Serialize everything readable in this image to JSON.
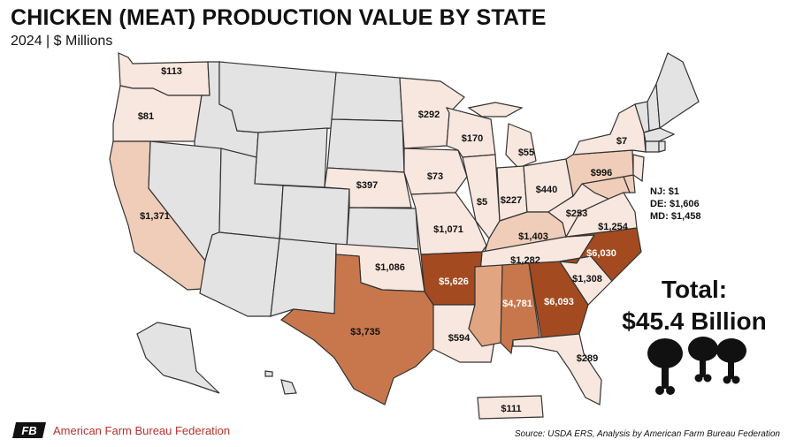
{
  "title": "CHICKEN (MEAT) PRODUCTION VALUE BY STATE",
  "subtitle": "2024 | $ Millions",
  "total_label": "Total:",
  "total_value": "$45.4 Billion",
  "notes": [
    "NJ: $1",
    "DE: $1,606",
    "MD: $1,458"
  ],
  "source": "Source: USDA ERS, Analysis by American Farm Bureau Federation",
  "org": "American Farm Bureau Federation",
  "org_mark": "FB",
  "colors": {
    "none": "#e3e3e3",
    "lightest": "#f8e7de",
    "light": "#efcdb8",
    "medium": "#e2a582",
    "dark": "#c8774d",
    "darkest": "#a34a20"
  },
  "state_values": [
    {
      "state": "WA",
      "label": "$113"
    },
    {
      "state": "OR",
      "label": "$81"
    },
    {
      "state": "CA",
      "label": "$1,371"
    },
    {
      "state": "MN",
      "label": "$292"
    },
    {
      "state": "WI",
      "label": "$170"
    },
    {
      "state": "MI",
      "label": "$55"
    },
    {
      "state": "NY",
      "label": "$7"
    },
    {
      "state": "NE",
      "label": "$397"
    },
    {
      "state": "IA",
      "label": "$73"
    },
    {
      "state": "IL",
      "label": "$5"
    },
    {
      "state": "IN",
      "label": "$227"
    },
    {
      "state": "OH",
      "label": "$440"
    },
    {
      "state": "PA",
      "label": "$996"
    },
    {
      "state": "WV",
      "label": "$253"
    },
    {
      "state": "VA",
      "label": "$1,254"
    },
    {
      "state": "MO",
      "label": "$1,071"
    },
    {
      "state": "KY",
      "label": "$1,403"
    },
    {
      "state": "TN",
      "label": "$1,282"
    },
    {
      "state": "NC",
      "label": "$6,030"
    },
    {
      "state": "OK",
      "label": "$1,086"
    },
    {
      "state": "AR",
      "label": "$5,626"
    },
    {
      "state": "SC",
      "label": "$1,308"
    },
    {
      "state": "AL",
      "label": "$4,781"
    },
    {
      "state": "GA",
      "label": "$6,093"
    },
    {
      "state": "TX",
      "label": "$3,735"
    },
    {
      "state": "LA",
      "label": "$594"
    },
    {
      "state": "FL",
      "label": "$289"
    },
    {
      "state": "PR",
      "label": "$111"
    }
  ]
}
